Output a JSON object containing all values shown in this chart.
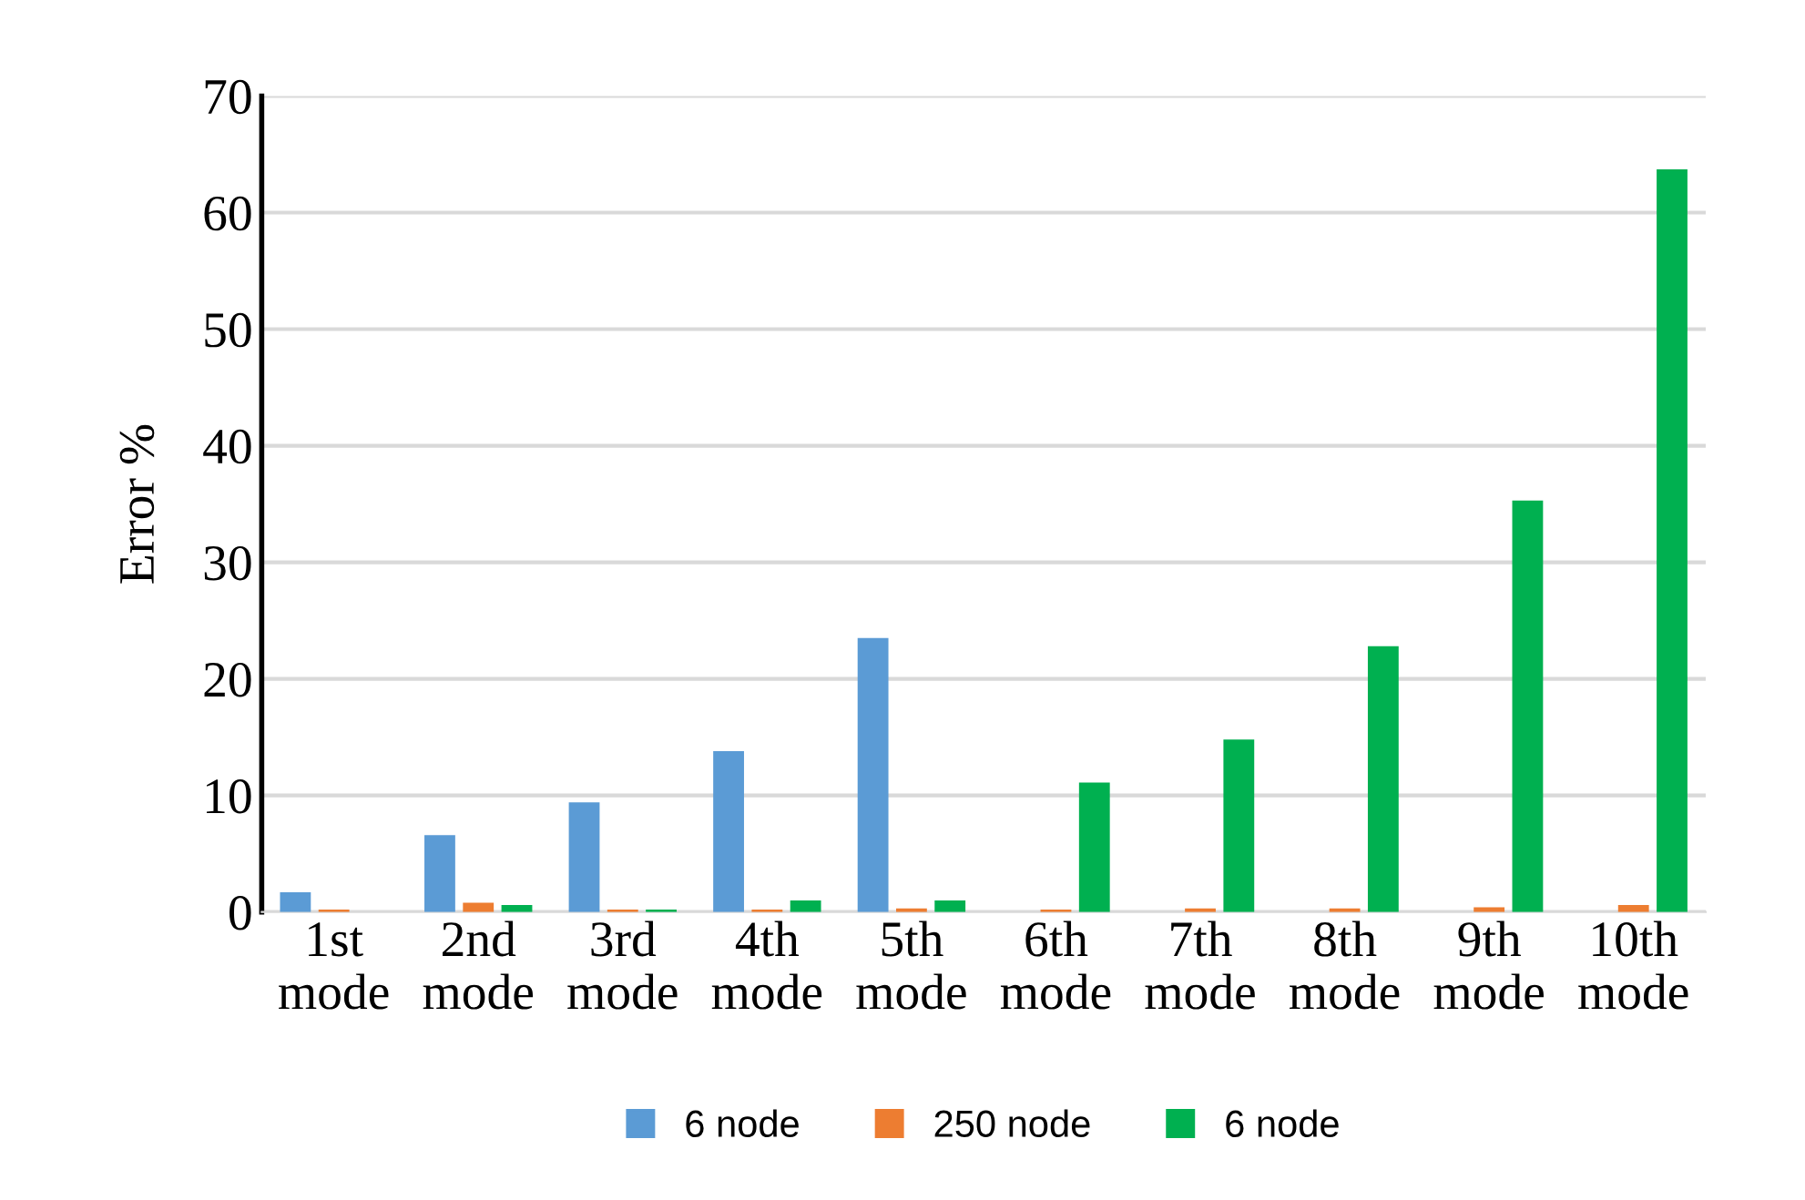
{
  "chart_data": {
    "type": "bar",
    "ylabel": "Error %",
    "categories": [
      "1st\nmode",
      "2nd\nmode",
      "3rd\nmode",
      "4th\nmode",
      "5th\nmode",
      "6th\nmode",
      "7th\nmode",
      "8th\nmode",
      "9th\nmode",
      "10th\nmode"
    ],
    "series": [
      {
        "name": "6 node",
        "color": "#5b9bd5",
        "values": [
          1.7,
          6.6,
          9.4,
          13.8,
          23.5,
          0,
          0,
          0,
          0,
          0
        ]
      },
      {
        "name": "250 node",
        "color": "#ed7d31",
        "values": [
          0.2,
          0.8,
          0.2,
          0.2,
          0.3,
          0.2,
          0.3,
          0.3,
          0.4,
          0.6
        ]
      },
      {
        "name": "6 node",
        "color": "#00b050",
        "values": [
          0,
          0.6,
          0.2,
          1.0,
          1.0,
          11.1,
          14.8,
          22.8,
          35.3,
          63.7
        ]
      }
    ],
    "ylim": [
      0,
      70
    ],
    "yticks": [
      0,
      10,
      20,
      30,
      40,
      50,
      60,
      70
    ],
    "grid": "y",
    "legend": "bottom"
  }
}
